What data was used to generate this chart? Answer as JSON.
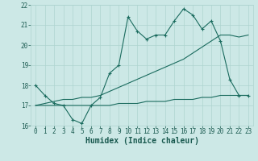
{
  "xlabel": "Humidex (Indice chaleur)",
  "bg_color": "#cce8e6",
  "line_color": "#1a6b5e",
  "xlim": [
    -0.5,
    23.5
  ],
  "ylim": [
    16,
    22
  ],
  "xticks": [
    0,
    1,
    2,
    3,
    4,
    5,
    6,
    7,
    8,
    9,
    10,
    11,
    12,
    13,
    14,
    15,
    16,
    17,
    18,
    19,
    20,
    21,
    22,
    23
  ],
  "yticks": [
    16,
    17,
    18,
    19,
    20,
    21,
    22
  ],
  "line1_x": [
    0,
    1,
    2,
    3,
    4,
    5,
    6,
    7,
    8,
    9,
    10,
    11,
    12,
    13,
    14,
    15,
    16,
    17,
    18,
    19,
    20,
    21,
    22,
    23
  ],
  "line1_y": [
    18.0,
    17.5,
    17.1,
    17.0,
    16.3,
    16.1,
    17.0,
    17.4,
    18.6,
    19.0,
    21.4,
    20.7,
    20.3,
    20.5,
    20.5,
    21.2,
    21.8,
    21.5,
    20.8,
    21.2,
    20.2,
    18.3,
    17.5,
    17.5
  ],
  "line2_x": [
    0,
    1,
    2,
    3,
    4,
    5,
    6,
    7,
    8,
    9,
    10,
    11,
    12,
    13,
    14,
    15,
    16,
    17,
    18,
    19,
    20,
    21,
    22,
    23
  ],
  "line2_y": [
    17.0,
    17.1,
    17.2,
    17.3,
    17.3,
    17.4,
    17.4,
    17.5,
    17.7,
    17.9,
    18.1,
    18.3,
    18.5,
    18.7,
    18.9,
    19.1,
    19.3,
    19.6,
    19.9,
    20.2,
    20.5,
    20.5,
    20.4,
    20.5
  ],
  "line3_x": [
    0,
    1,
    2,
    3,
    4,
    5,
    6,
    7,
    8,
    9,
    10,
    11,
    12,
    13,
    14,
    15,
    16,
    17,
    18,
    19,
    20,
    21,
    22,
    23
  ],
  "line3_y": [
    17.0,
    17.0,
    17.0,
    17.0,
    17.0,
    17.0,
    17.0,
    17.0,
    17.0,
    17.1,
    17.1,
    17.1,
    17.2,
    17.2,
    17.2,
    17.3,
    17.3,
    17.3,
    17.4,
    17.4,
    17.5,
    17.5,
    17.5,
    17.5
  ],
  "gridcolor": "#aed4d0",
  "font_color": "#1a5a50",
  "tick_fontsize": 5.5,
  "xlabel_fontsize": 7.0
}
